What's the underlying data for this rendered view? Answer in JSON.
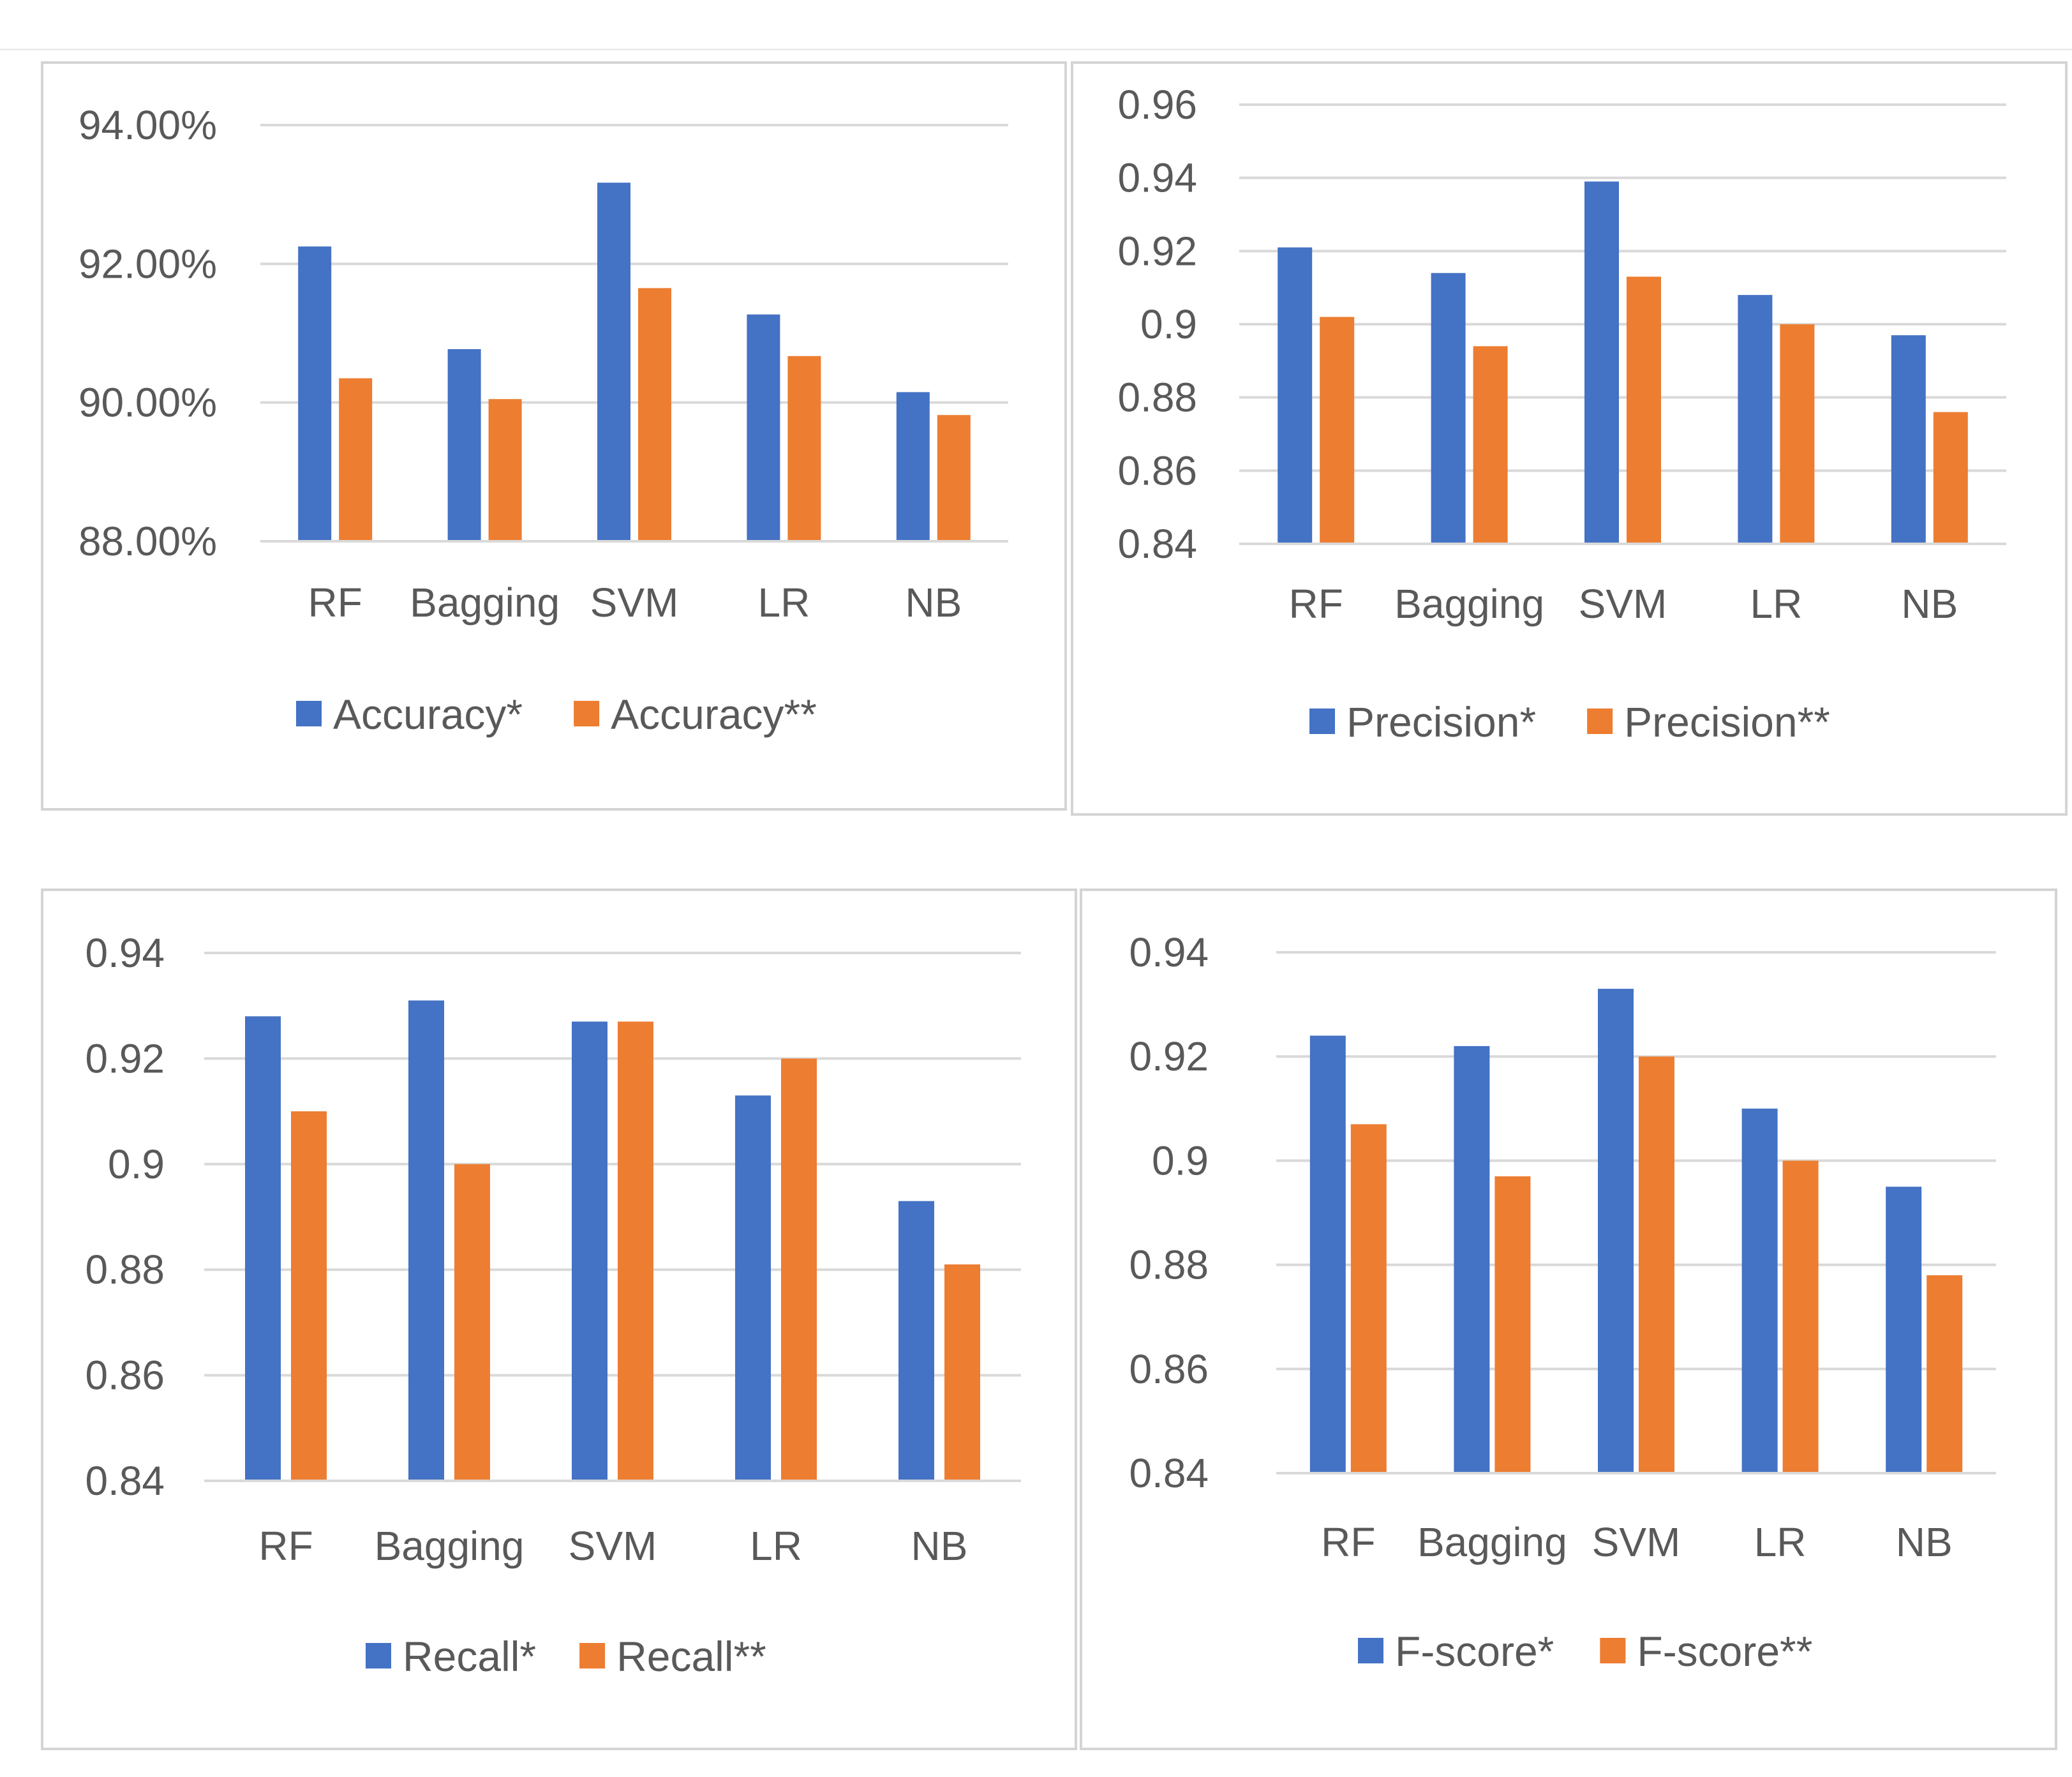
{
  "colors": {
    "series1": "#4472c4",
    "series2": "#ed7d31",
    "grid": "#d9d9d9",
    "text": "#595959"
  },
  "chart_data": [
    {
      "type": "bar",
      "title": "",
      "categories": [
        "RF",
        "Bagging",
        "SVM",
        "LR",
        "NB"
      ],
      "series": [
        {
          "name": "Accuracy*",
          "values": [
            92.25,
            90.77,
            93.17,
            91.27,
            90.15
          ]
        },
        {
          "name": "Accuracy**",
          "values": [
            90.35,
            90.05,
            91.65,
            90.67,
            89.82
          ]
        }
      ],
      "ylim": [
        88,
        94
      ],
      "yticks": [
        88,
        90,
        92,
        94
      ],
      "ytick_labels": [
        "88.00%",
        "90.00%",
        "92.00%",
        "94.00%"
      ],
      "grid": true,
      "legend": "bottom",
      "xlabel": "",
      "ylabel": ""
    },
    {
      "type": "bar",
      "title": "",
      "categories": [
        "RF",
        "Bagging",
        "SVM",
        "LR",
        "NB"
      ],
      "series": [
        {
          "name": "Precision*",
          "values": [
            0.921,
            0.914,
            0.939,
            0.908,
            0.897
          ]
        },
        {
          "name": "Precision**",
          "values": [
            0.902,
            0.894,
            0.913,
            0.9,
            0.876
          ]
        }
      ],
      "ylim": [
        0.84,
        0.96
      ],
      "yticks": [
        0.84,
        0.86,
        0.88,
        0.9,
        0.92,
        0.94,
        0.96
      ],
      "ytick_labels": [
        "0.84",
        "0.86",
        "0.88",
        "0.9",
        "0.92",
        "0.94",
        "0.96"
      ],
      "grid": true,
      "legend": "bottom",
      "xlabel": "",
      "ylabel": ""
    },
    {
      "type": "bar",
      "title": "",
      "categories": [
        "RF",
        "Bagging",
        "SVM",
        "LR",
        "NB"
      ],
      "series": [
        {
          "name": "Recall*",
          "values": [
            0.928,
            0.931,
            0.927,
            0.913,
            0.893
          ]
        },
        {
          "name": "Recall**",
          "values": [
            0.91,
            0.9,
            0.927,
            0.92,
            0.881
          ]
        }
      ],
      "ylim": [
        0.84,
        0.94
      ],
      "yticks": [
        0.84,
        0.86,
        0.88,
        0.9,
        0.92,
        0.94
      ],
      "ytick_labels": [
        "0.84",
        "0.86",
        "0.88",
        "0.9",
        "0.92",
        "0.94"
      ],
      "grid": true,
      "legend": "bottom",
      "xlabel": "",
      "ylabel": ""
    },
    {
      "type": "bar",
      "title": "",
      "categories": [
        "RF",
        "Bagging",
        "SVM",
        "LR",
        "NB"
      ],
      "series": [
        {
          "name": "F-score*",
          "values": [
            0.924,
            0.922,
            0.933,
            0.91,
            0.895
          ]
        },
        {
          "name": "F-score**",
          "values": [
            0.907,
            0.897,
            0.92,
            0.9,
            0.878
          ]
        }
      ],
      "ylim": [
        0.84,
        0.94
      ],
      "yticks": [
        0.84,
        0.86,
        0.88,
        0.9,
        0.92,
        0.94
      ],
      "ytick_labels": [
        "0.84",
        "0.86",
        "0.88",
        "0.9",
        "0.92",
        "0.94"
      ],
      "grid": true,
      "legend": "bottom",
      "xlabel": "",
      "ylabel": ""
    }
  ]
}
